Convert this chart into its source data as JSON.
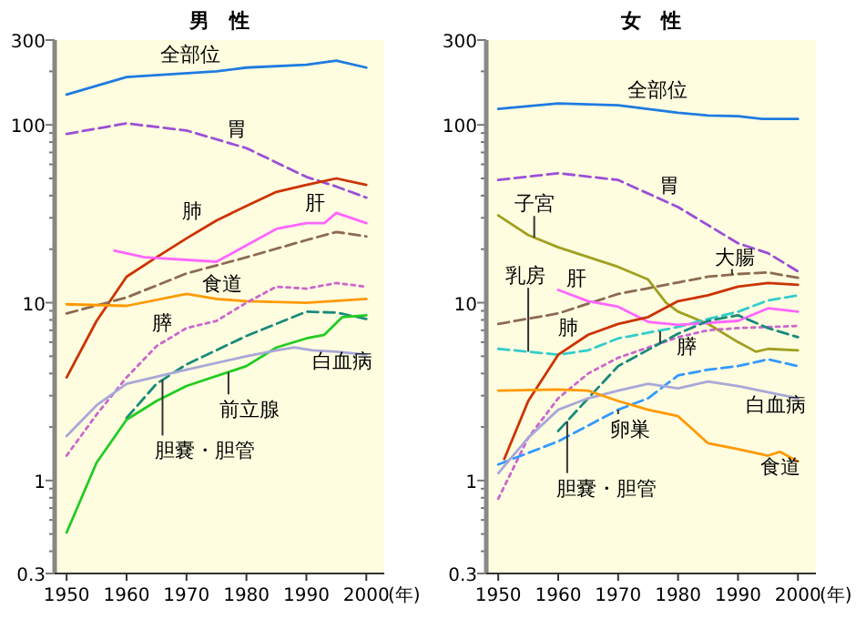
{
  "chart_data": [
    {
      "type": "line",
      "title": "男　性",
      "xlabel": "(年)",
      "log": "y",
      "xlim": [
        1948,
        2003
      ],
      "ylim": [
        0.3,
        300
      ],
      "xticks": [
        1950,
        1960,
        1970,
        1980,
        1990,
        2000
      ],
      "yticks": [
        0.3,
        {
          "value": 0.4,
          "label": null
        },
        {
          "value": 0.5,
          "label": null
        },
        {
          "value": 0.6,
          "label": null
        },
        {
          "value": 0.7,
          "label": null
        },
        {
          "value": 0.8,
          "label": null
        },
        {
          "value": 0.9,
          "label": null
        },
        1,
        {
          "value": 2,
          "label": null
        },
        {
          "value": 3,
          "label": null
        },
        {
          "value": 4,
          "label": null
        },
        {
          "value": 5,
          "label": null
        },
        {
          "value": 6,
          "label": null
        },
        {
          "value": 7,
          "label": null
        },
        {
          "value": 8,
          "label": null
        },
        {
          "value": 9,
          "label": null
        },
        10,
        {
          "value": 20,
          "label": null
        },
        {
          "value": 30,
          "label": null
        },
        {
          "value": 40,
          "label": null
        },
        {
          "value": 50,
          "label": null
        },
        {
          "value": 60,
          "label": null
        },
        {
          "value": 70,
          "label": null
        },
        {
          "value": 80,
          "label": null
        },
        {
          "value": 90,
          "label": null
        },
        100,
        {
          "value": 200,
          "label": null
        },
        300
      ],
      "series": [
        {
          "name": "全部位",
          "color": "#1e7be0",
          "line_style": "solid",
          "x": [
            1950,
            1960,
            1975,
            1980,
            1990,
            1995,
            2000
          ],
          "values": [
            148,
            186,
            200,
            210,
            218,
            230,
            210
          ]
        },
        {
          "name": "胃",
          "color": "#9b4fd6",
          "line_style": "dashed",
          "x": [
            1950,
            1960,
            1970,
            1980,
            1990,
            1995,
            2000
          ],
          "values": [
            89,
            102,
            93,
            74,
            51,
            45,
            39
          ]
        },
        {
          "name": "肺",
          "color": "#cc3300",
          "line_style": "solid",
          "x": [
            1950,
            1955,
            1960,
            1965,
            1970,
            1975,
            1980,
            1985,
            1990,
            1995,
            2000
          ],
          "values": [
            3.8,
            7.9,
            14,
            18,
            23,
            29,
            35,
            42,
            46,
            50,
            46
          ]
        },
        {
          "name": "肝",
          "color": "#ff66ff",
          "line_style": "solid",
          "x": [
            1958,
            1963,
            1975,
            1980,
            1985,
            1990,
            1993,
            1995,
            2000
          ],
          "values": [
            19.6,
            18,
            17,
            21,
            26,
            28,
            28,
            32,
            28
          ]
        },
        {
          "color": "#8b6a50",
          "line_style": "dashed",
          "x": [
            1950,
            1960,
            1970,
            1980,
            1990,
            1995,
            2000
          ],
          "values": [
            8.7,
            10.7,
            14.6,
            18,
            22.5,
            25,
            23.6
          ]
        },
        {
          "name": "食道",
          "color": "#ff9900",
          "line_style": "solid",
          "x": [
            1950,
            1960,
            1970,
            1975,
            1980,
            1990,
            2000
          ],
          "values": [
            9.8,
            9.6,
            11.2,
            10.5,
            10.2,
            10,
            10.5
          ]
        },
        {
          "name": "膵",
          "color": "#cc66cc",
          "line_style": "dotted",
          "x": [
            1950,
            1955,
            1960,
            1965,
            1970,
            1975,
            1980,
            1985,
            1990,
            1995,
            2000
          ],
          "values": [
            1.38,
            2.35,
            3.8,
            5.7,
            7.2,
            7.9,
            10,
            12.3,
            12,
            12.9,
            12.3
          ]
        },
        {
          "name": "胆嚢・胆管",
          "color": "#1a8a7a",
          "line_style": "dashed",
          "x": [
            1960,
            1965,
            1970,
            1980,
            1990,
            1995,
            2000
          ],
          "values": [
            2.25,
            3.5,
            4.5,
            6.5,
            8.9,
            8.8,
            8.1
          ]
        },
        {
          "name": "前立腺",
          "color": "#22cc22",
          "line_style": "solid",
          "x": [
            1950,
            1955,
            1960,
            1965,
            1970,
            1980,
            1985,
            1990,
            1993,
            1996,
            2000
          ],
          "values": [
            0.51,
            1.26,
            2.2,
            2.8,
            3.4,
            4.4,
            5.6,
            6.3,
            6.6,
            8.3,
            8.5
          ]
        },
        {
          "name": "白血病",
          "color": "#a8a8d8",
          "line_style": "solid",
          "x": [
            1950,
            1955,
            1960,
            1970,
            1980,
            1985,
            1988,
            1991,
            1995,
            2000
          ],
          "values": [
            1.78,
            2.65,
            3.5,
            4.2,
            5.0,
            5.4,
            5.6,
            5.4,
            5.3,
            5.1
          ]
        }
      ]
    },
    {
      "type": "line",
      "title": "女　性",
      "xlabel": "(年)",
      "log": "y",
      "xlim": [
        1948,
        2003
      ],
      "ylim": [
        0.3,
        300
      ],
      "xticks": [
        1950,
        1960,
        1970,
        1980,
        1990,
        2000
      ],
      "yticks": [
        0.3,
        {
          "value": 0.4,
          "label": null
        },
        {
          "value": 0.5,
          "label": null
        },
        {
          "value": 0.6,
          "label": null
        },
        {
          "value": 0.7,
          "label": null
        },
        {
          "value": 0.8,
          "label": null
        },
        {
          "value": 0.9,
          "label": null
        },
        1,
        {
          "value": 2,
          "label": null
        },
        {
          "value": 3,
          "label": null
        },
        {
          "value": 4,
          "label": null
        },
        {
          "value": 5,
          "label": null
        },
        {
          "value": 6,
          "label": null
        },
        {
          "value": 7,
          "label": null
        },
        {
          "value": 8,
          "label": null
        },
        {
          "value": 9,
          "label": null
        },
        10,
        {
          "value": 20,
          "label": null
        },
        {
          "value": 30,
          "label": null
        },
        {
          "value": 40,
          "label": null
        },
        {
          "value": 50,
          "label": null
        },
        {
          "value": 60,
          "label": null
        },
        {
          "value": 70,
          "label": null
        },
        {
          "value": 80,
          "label": null
        },
        {
          "value": 90,
          "label": null
        },
        100,
        {
          "value": 200,
          "label": null
        },
        300
      ],
      "series": [
        {
          "name": "全部位",
          "color": "#1e7be0",
          "line_style": "solid",
          "x": [
            1950,
            1960,
            1970,
            1980,
            1985,
            1990,
            1994,
            2000
          ],
          "values": [
            123,
            132,
            129,
            117,
            113,
            112,
            108,
            108
          ]
        },
        {
          "name": "胃",
          "color": "#9b4fd6",
          "line_style": "dashed",
          "x": [
            1950,
            1960,
            1970,
            1980,
            1990,
            1995,
            2000
          ],
          "values": [
            49,
            53.5,
            49,
            34.5,
            21.6,
            19,
            15
          ]
        },
        {
          "name": "子宮",
          "color": "#a0a020",
          "line_style": "solid",
          "x": [
            1950,
            1955,
            1960,
            1970,
            1975,
            1978,
            1980,
            1985,
            1990,
            1993,
            1995,
            2000
          ],
          "values": [
            31,
            24,
            20.5,
            15.9,
            13.5,
            10,
            8.9,
            7.6,
            6.0,
            5.3,
            5.5,
            5.4
          ]
        },
        {
          "name": "大腸",
          "color": "#8b6a50",
          "line_style": "dashed",
          "x": [
            1950,
            1960,
            1970,
            1980,
            1985,
            1990,
            1995,
            2000
          ],
          "values": [
            7.6,
            8.7,
            11.2,
            13,
            14,
            14.5,
            14.8,
            13.8
          ]
        },
        {
          "name": "乳房",
          "color": "#33cccc",
          "line_style": "dashed",
          "x": [
            1950,
            1955,
            1960,
            1965,
            1970,
            1980,
            1985,
            1990,
            1995,
            2000
          ],
          "values": [
            5.5,
            5.3,
            5.1,
            5.4,
            6.3,
            7.3,
            8.1,
            8.9,
            10.3,
            11
          ]
        },
        {
          "name": "肝",
          "color": "#ff66ff",
          "line_style": "solid",
          "x": [
            1960,
            1965,
            1970,
            1975,
            1980,
            1990,
            1995,
            2000
          ],
          "values": [
            11.8,
            10.2,
            9.5,
            7.8,
            7.5,
            7.9,
            9.3,
            8.9
          ]
        },
        {
          "name": "肺",
          "color": "#cc3300",
          "line_style": "solid",
          "x": [
            1951,
            1955,
            1960,
            1965,
            1970,
            1975,
            1980,
            1985,
            1990,
            1995,
            2000
          ],
          "values": [
            1.32,
            2.8,
            5.1,
            6.6,
            7.6,
            8.3,
            10.2,
            11,
            12.3,
            12.9,
            12.6
          ]
        },
        {
          "name": "膵",
          "color": "#cc66cc",
          "line_style": "dotted",
          "x": [
            1950,
            1955,
            1960,
            1965,
            1970,
            1980,
            1985,
            1990,
            2000
          ],
          "values": [
            0.79,
            1.74,
            2.9,
            4.0,
            4.9,
            6.4,
            7.0,
            7.2,
            7.4
          ]
        },
        {
          "name": "胆嚢・胆管",
          "color": "#1a8a7a",
          "line_style": "dashed",
          "x": [
            1960,
            1965,
            1970,
            1980,
            1985,
            1990,
            1995,
            2000
          ],
          "values": [
            1.9,
            2.9,
            4.4,
            6.7,
            7.9,
            8.5,
            7.2,
            6.4
          ]
        },
        {
          "name": "卵巣",
          "color": "#3399ff",
          "line_style": "dashed",
          "x": [
            1950,
            1960,
            1970,
            1975,
            1980,
            1985,
            1990,
            1995,
            2000
          ],
          "values": [
            1.23,
            1.66,
            2.5,
            2.9,
            3.9,
            4.2,
            4.4,
            4.8,
            4.4
          ]
        },
        {
          "name": "白血病",
          "color": "#a8a8d8",
          "line_style": "solid",
          "x": [
            1950,
            1955,
            1960,
            1965,
            1970,
            1975,
            1980,
            1985,
            1990,
            2000
          ],
          "values": [
            1.1,
            1.74,
            2.5,
            2.9,
            3.2,
            3.5,
            3.3,
            3.6,
            3.4,
            2.9
          ]
        },
        {
          "name": "食道",
          "color": "#ff9900",
          "line_style": "solid",
          "x": [
            1950,
            1960,
            1965,
            1970,
            1975,
            1980,
            1985,
            1990,
            1995,
            1997,
            2000
          ],
          "values": [
            3.2,
            3.25,
            3.2,
            2.8,
            2.5,
            2.3,
            1.62,
            1.5,
            1.38,
            1.45,
            1.28
          ]
        }
      ]
    }
  ]
}
